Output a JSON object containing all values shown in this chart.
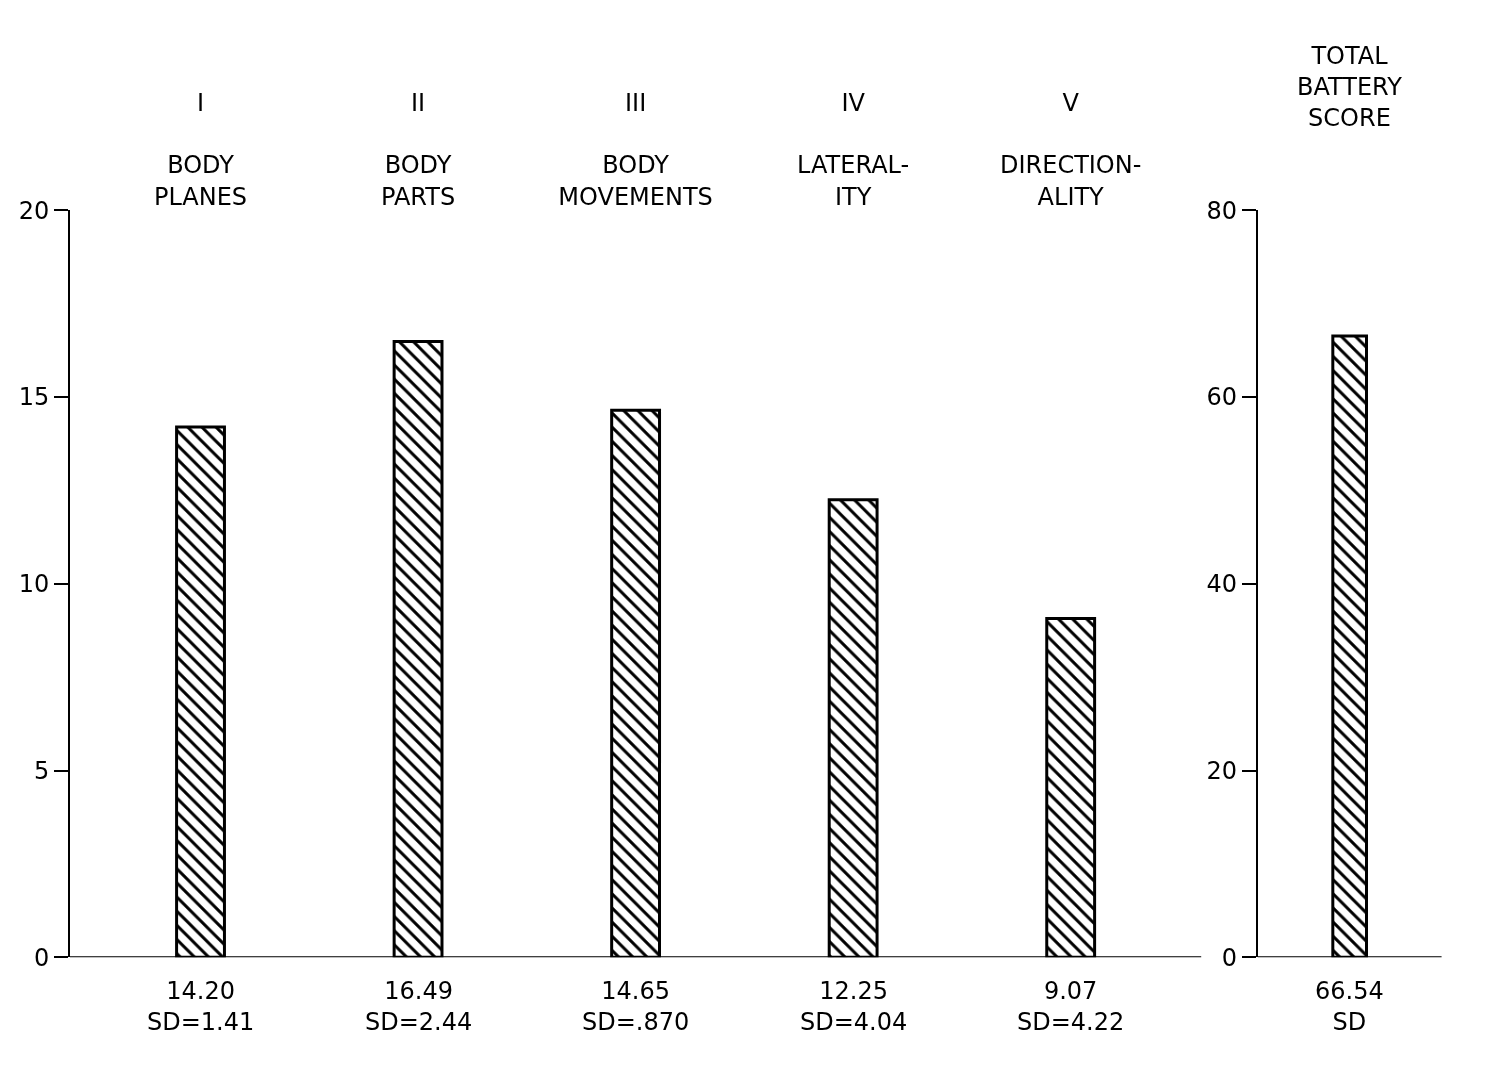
{
  "chart_data": [
    {
      "type": "bar",
      "categories": [
        "I\n\nBODY\nPLANES",
        "II\n\nBODY\nPARTS",
        "III\n\nBODY\nMOVEMENTS",
        "IV\n\nLATERAL-\nITY",
        "V\n\nDIRECTION-\nALITY"
      ],
      "values": [
        14.2,
        16.49,
        14.65,
        12.25,
        9.07
      ],
      "value_labels": [
        "14.20\nSD=1.41",
        "16.49\nSD=2.44",
        "14.65\nSD=.870",
        "12.25\nSD=4.04",
        "9.07\nSD=4.22"
      ],
      "color": "#000000",
      "ylim": [
        0,
        20
      ],
      "yticks": [
        0,
        5,
        10,
        15,
        20
      ]
    },
    {
      "type": "bar",
      "title": "TOTAL\nBATTERY\nSCORE",
      "categories": [
        null
      ],
      "values": [
        66.54
      ],
      "value_labels": [
        "66.54\nSD"
      ],
      "color": "#000000",
      "ylim": [
        0,
        80
      ],
      "yticks": [
        0,
        20,
        40,
        60,
        80
      ]
    }
  ]
}
